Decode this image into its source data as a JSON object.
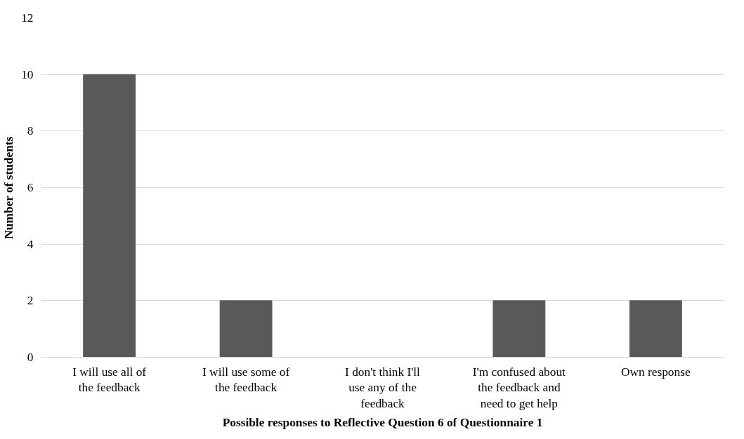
{
  "chart_data": {
    "type": "bar",
    "xlabel": "Possible responses to Reflective Question 6 of Questionnaire 1",
    "ylabel": "Number of students",
    "categories": [
      "I will use all of the feedback",
      "I will use some of the feedback",
      "I don't think I'll use any of the feedback",
      "I'm confused about the feedback and need to get help",
      "Own response"
    ],
    "values": [
      10,
      2,
      0,
      2,
      2
    ],
    "color": "#595959",
    "ylim": [
      0,
      12
    ],
    "yticks": [
      0,
      2,
      4,
      6,
      8,
      10,
      12
    ],
    "grid": "y"
  }
}
